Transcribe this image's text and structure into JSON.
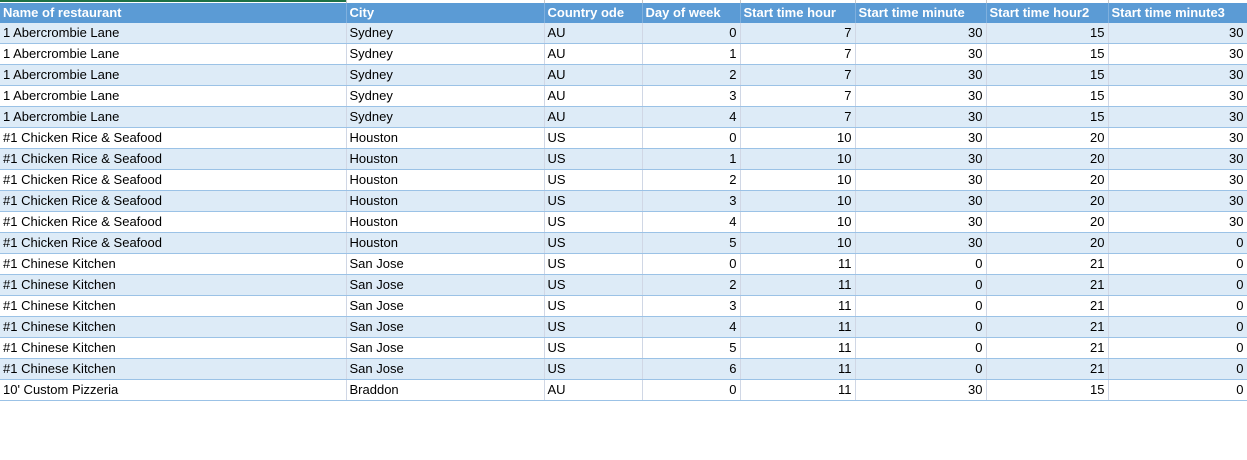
{
  "headers": [
    "Name of restaurant",
    "City",
    "Country ode",
    "Day of week",
    "Start time hour",
    "Start time minute",
    "Start time hour2",
    "Start time minute3"
  ],
  "rows": [
    [
      "1 Abercrombie Lane",
      "Sydney",
      "AU",
      "0",
      "7",
      "30",
      "15",
      "30"
    ],
    [
      "1 Abercrombie Lane",
      "Sydney",
      "AU",
      "1",
      "7",
      "30",
      "15",
      "30"
    ],
    [
      "1 Abercrombie Lane",
      "Sydney",
      "AU",
      "2",
      "7",
      "30",
      "15",
      "30"
    ],
    [
      "1 Abercrombie Lane",
      "Sydney",
      "AU",
      "3",
      "7",
      "30",
      "15",
      "30"
    ],
    [
      "1 Abercrombie Lane",
      "Sydney",
      "AU",
      "4",
      "7",
      "30",
      "15",
      "30"
    ],
    [
      "#1 Chicken Rice & Seafood",
      "Houston",
      "US",
      "0",
      "10",
      "30",
      "20",
      "30"
    ],
    [
      "#1 Chicken Rice & Seafood",
      "Houston",
      "US",
      "1",
      "10",
      "30",
      "20",
      "30"
    ],
    [
      "#1 Chicken Rice & Seafood",
      "Houston",
      "US",
      "2",
      "10",
      "30",
      "20",
      "30"
    ],
    [
      "#1 Chicken Rice & Seafood",
      "Houston",
      "US",
      "3",
      "10",
      "30",
      "20",
      "30"
    ],
    [
      "#1 Chicken Rice & Seafood",
      "Houston",
      "US",
      "4",
      "10",
      "30",
      "20",
      "30"
    ],
    [
      "#1 Chicken Rice & Seafood",
      "Houston",
      "US",
      "5",
      "10",
      "30",
      "20",
      "0"
    ],
    [
      "#1 Chinese Kitchen",
      "San Jose",
      "US",
      "0",
      "11",
      "0",
      "21",
      "0"
    ],
    [
      "#1 Chinese Kitchen",
      "San Jose",
      "US",
      "2",
      "11",
      "0",
      "21",
      "0"
    ],
    [
      "#1 Chinese Kitchen",
      "San Jose",
      "US",
      "3",
      "11",
      "0",
      "21",
      "0"
    ],
    [
      "#1 Chinese Kitchen",
      "San Jose",
      "US",
      "4",
      "11",
      "0",
      "21",
      "0"
    ],
    [
      "#1 Chinese Kitchen",
      "San Jose",
      "US",
      "5",
      "11",
      "0",
      "21",
      "0"
    ],
    [
      "#1 Chinese Kitchen",
      "San Jose",
      "US",
      "6",
      "11",
      "0",
      "21",
      "0"
    ],
    [
      "10' Custom Pizzeria",
      "Braddon",
      "AU",
      "0",
      "11",
      "30",
      "15",
      "0"
    ]
  ],
  "colors": {
    "header_bg": "#5b9bd5",
    "header_text": "#ffffff",
    "band_row": "#ddebf7",
    "plain_row": "#ffffff",
    "active_indicator": "#1e7145"
  }
}
